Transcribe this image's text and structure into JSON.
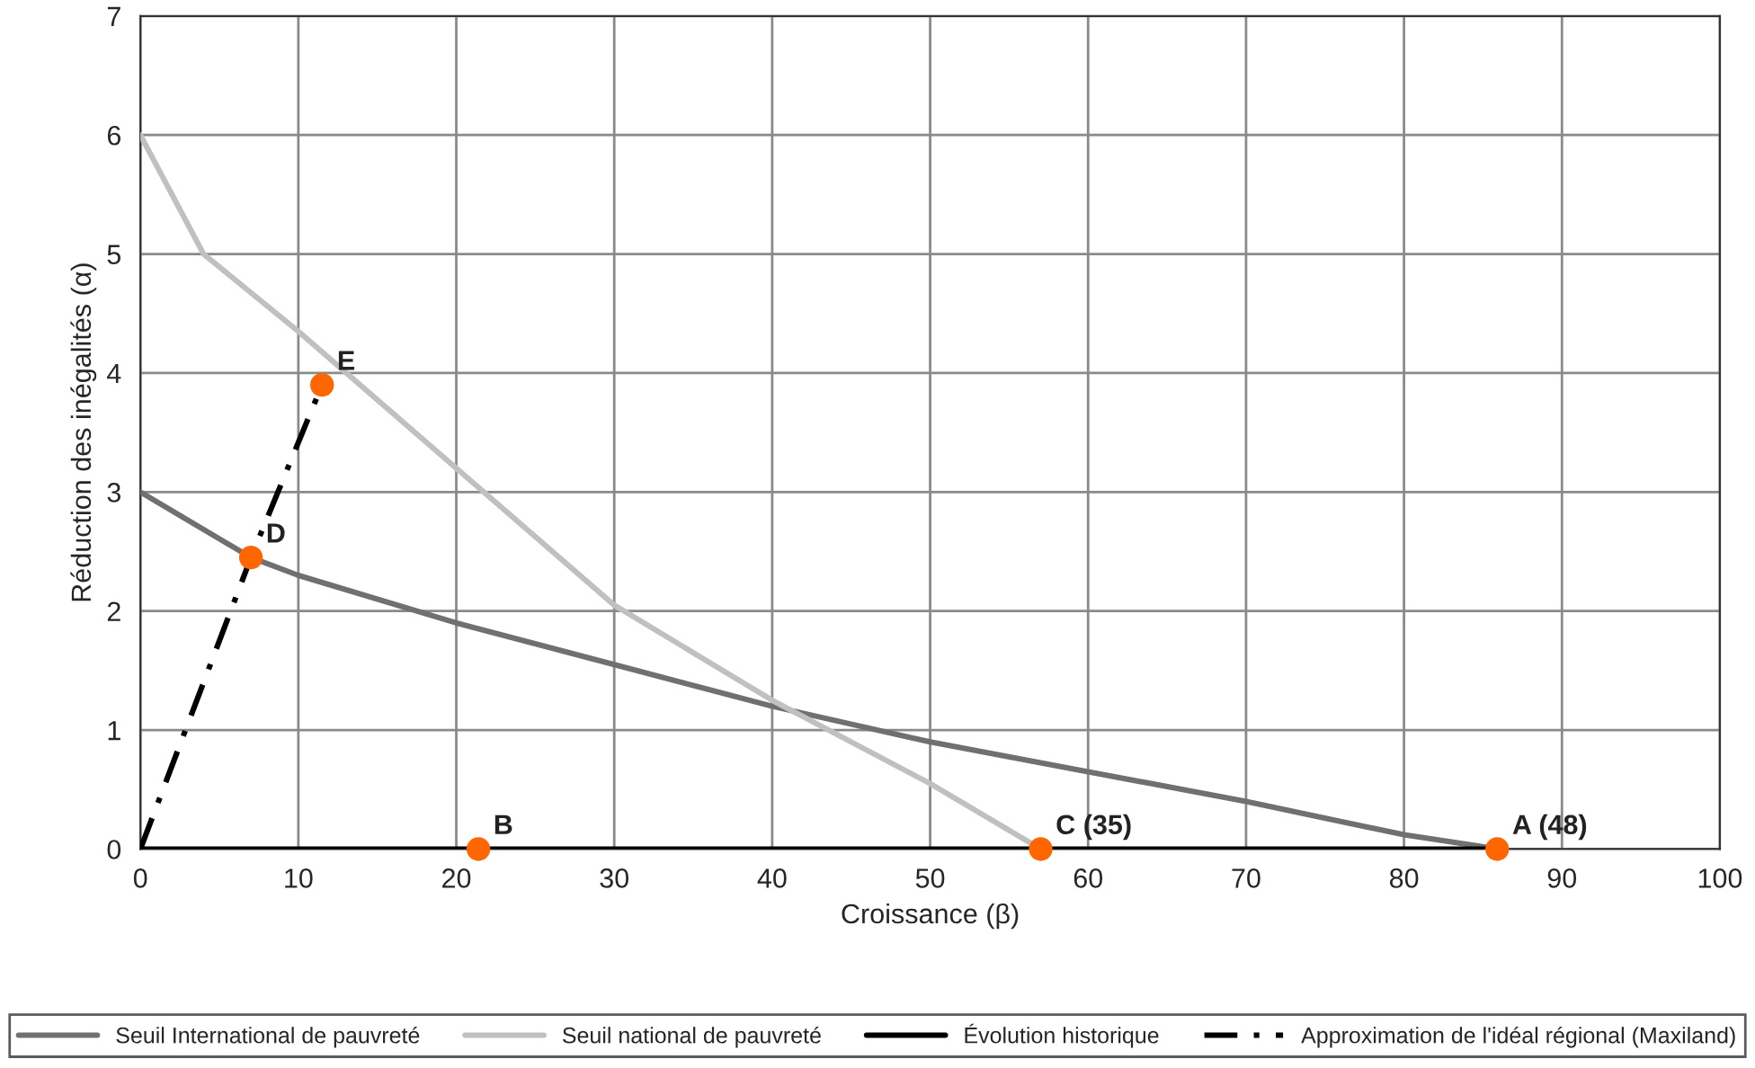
{
  "chart_data": {
    "type": "line",
    "xlabel": "Croissance (β)",
    "ylabel": "Réduction des inégalités (α)",
    "xlim": [
      0,
      100
    ],
    "xticks": [
      0,
      10,
      20,
      30,
      40,
      50,
      60,
      70,
      80,
      90,
      100
    ],
    "ylim": [
      0,
      7
    ],
    "yticks": [
      0,
      1,
      2,
      3,
      4,
      5,
      6,
      7
    ],
    "grid": true,
    "legend": "bottom",
    "series": [
      {
        "name": "Seuil International de pauvreté",
        "color": "#707070",
        "line_style": "solid",
        "x": [
          0,
          7,
          10,
          20,
          30,
          40,
          50,
          60,
          70,
          80,
          86
        ],
        "values": [
          3,
          2.45,
          2.3,
          1.9,
          1.55,
          1.2,
          0.9,
          0.65,
          0.4,
          0.12,
          0
        ]
      },
      {
        "name": "Seuil national de pauvreté",
        "color": "#c0c0c0",
        "line_style": "solid",
        "x": [
          0,
          4,
          10,
          20,
          30,
          40,
          50,
          57
        ],
        "values": [
          6,
          5,
          4.35,
          3.2,
          2.05,
          1.25,
          0.55,
          0
        ]
      },
      {
        "name": "Évolution historique",
        "color": "#000000",
        "line_style": "solid",
        "x": [
          0,
          86
        ],
        "values": [
          0,
          0
        ]
      },
      {
        "name": "Approximation de l'idéal régional (Maxiland)",
        "color": "#000000",
        "line_style": "dashed",
        "x": [
          0,
          7,
          11.5
        ],
        "values": [
          0,
          2.45,
          3.9
        ]
      },
      {
        "type": "scatter",
        "color": "#ff6600",
        "marker": "circle",
        "x": [
          11.5,
          7,
          21.4,
          57,
          85.9
        ],
        "values": [
          3.9,
          2.45,
          0,
          0,
          0
        ]
      }
    ],
    "annotations": [
      {
        "text": "E",
        "x": 11.5,
        "y": 3.9
      },
      {
        "text": "D",
        "x": 7,
        "y": 2.45
      },
      {
        "text": "B",
        "x": 21.4,
        "y": 0
      },
      {
        "text": "C (35)",
        "x": 57,
        "y": 0
      },
      {
        "text": "A (48)",
        "x": 85.9,
        "y": 0
      }
    ]
  }
}
